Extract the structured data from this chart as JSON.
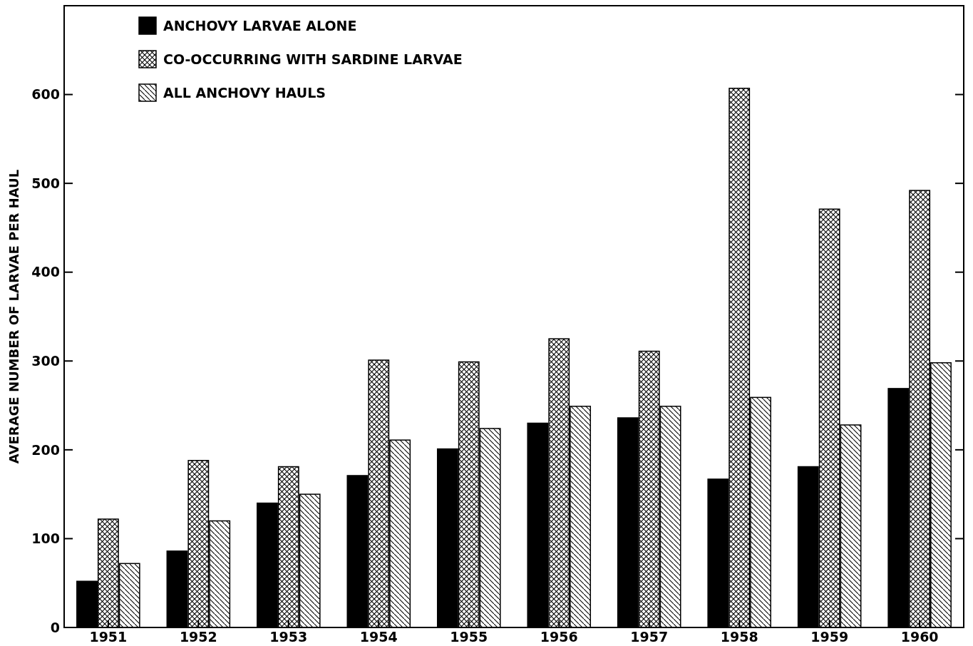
{
  "chart_data": {
    "type": "bar",
    "ylabel": "AVERAGE NUMBER OF LARVAE PER HAUL",
    "categories": [
      "1951",
      "1952",
      "1953",
      "1954",
      "1955",
      "1956",
      "1957",
      "1958",
      "1959",
      "1960"
    ],
    "series": [
      {
        "name": "ANCHOVY LARVAE ALONE",
        "color": "#000000",
        "values": [
          52,
          86,
          140,
          171,
          201,
          230,
          236,
          167,
          181,
          269
        ]
      },
      {
        "name": "CO-OCCURRING WITH SARDINE LARVAE",
        "color": "#000000",
        "values": [
          122,
          188,
          181,
          301,
          299,
          325,
          311,
          607,
          471,
          492
        ]
      },
      {
        "name": "ALL ANCHOVY HAULS",
        "color": "#000000",
        "values": [
          72,
          120,
          150,
          211,
          224,
          249,
          249,
          259,
          228,
          298
        ]
      }
    ],
    "ylim": [
      0,
      700
    ],
    "yticks": [
      0,
      100,
      200,
      300,
      400,
      500,
      600
    ],
    "grid": false,
    "legend": "top left"
  }
}
